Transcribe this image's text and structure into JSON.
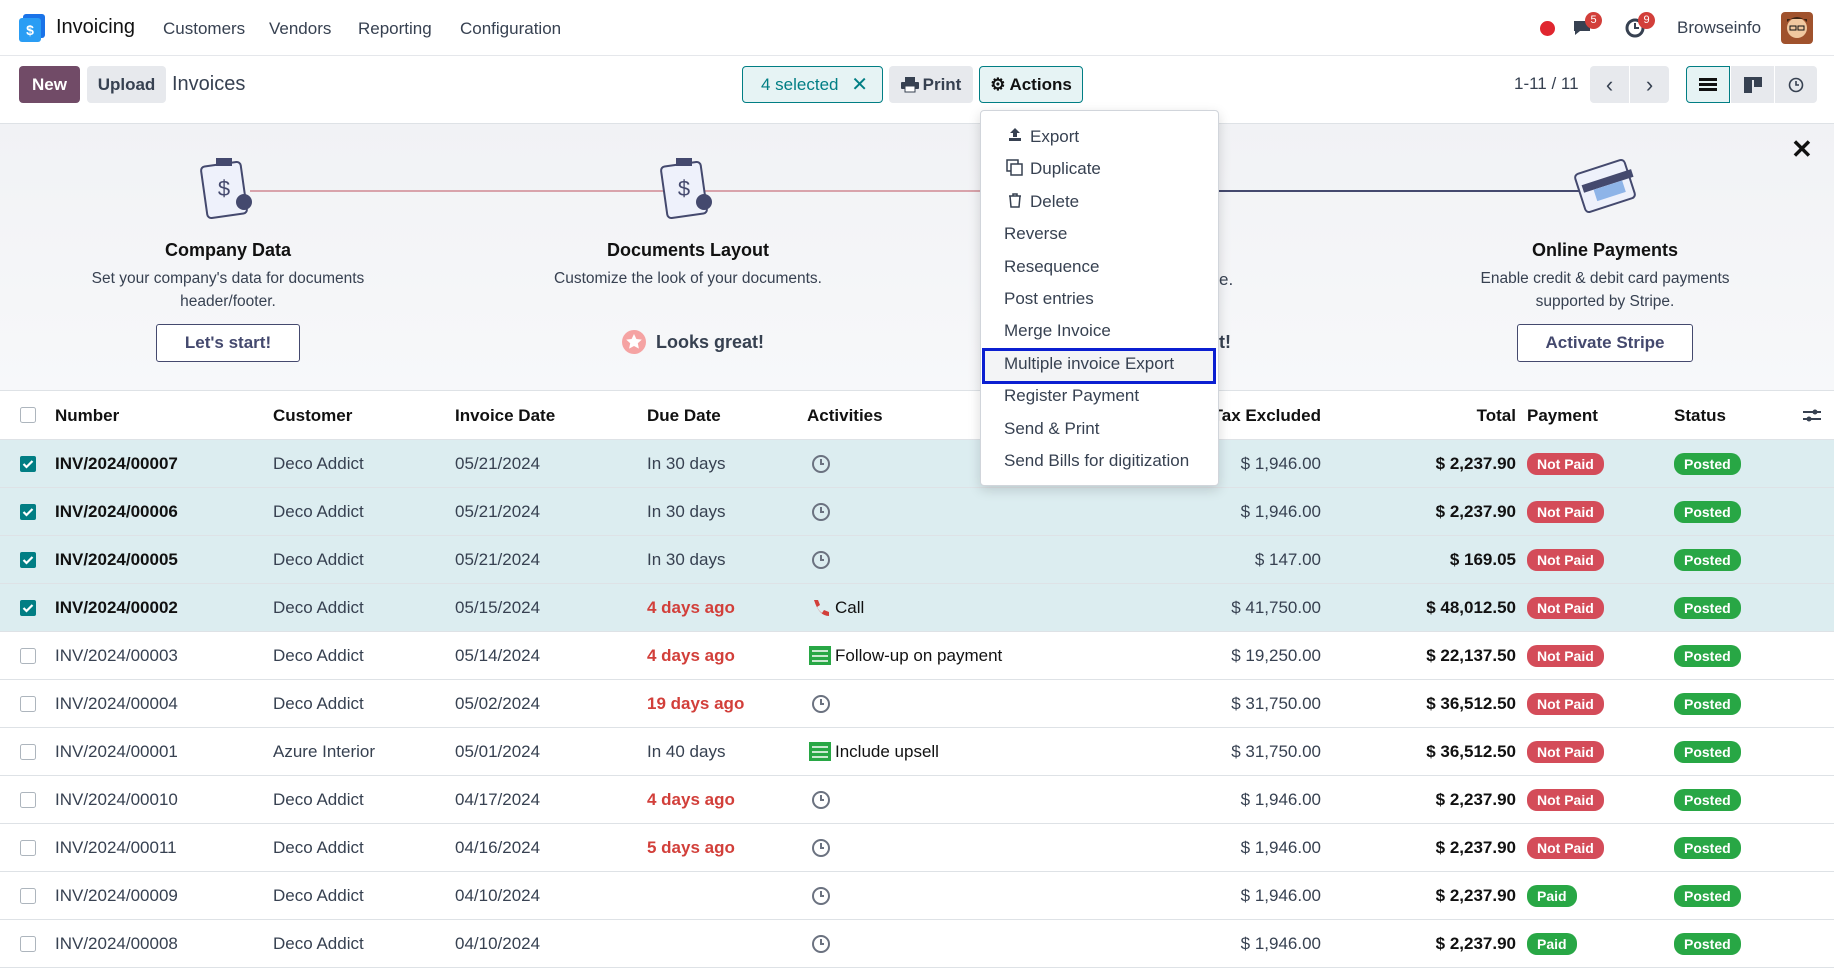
{
  "navbar": {
    "app": "Invoicing",
    "menu": [
      "Customers",
      "Vendors",
      "Reporting",
      "Configuration"
    ],
    "messages_badge": "5",
    "activities_badge": "9",
    "user": "Browseinfo"
  },
  "control": {
    "new": "New",
    "upload": "Upload",
    "breadcrumb": "Invoices",
    "selected": "4 selected",
    "print": "Print",
    "actions": "Actions",
    "pager": "1-11 / 11"
  },
  "actions_menu": {
    "items": [
      "Export",
      "Duplicate",
      "Delete",
      "Reverse",
      "Resequence",
      "Post entries",
      "Merge Invoice",
      "Multiple invoice Export",
      "Register Payment",
      "Send & Print",
      "Send Bills for digitization"
    ],
    "highlighted": 7
  },
  "onboarding": {
    "steps": [
      {
        "title": "Company Data",
        "description": [
          "Set your company's data for documents",
          "header/footer."
        ],
        "button": "Let's start!"
      },
      {
        "title": "Documents Layout",
        "description": [
          "Customize the look of your documents."
        ],
        "done": "Looks great!"
      },
      {
        "description": [
          "e."
        ],
        "done": "t!"
      },
      {
        "title": "Online Payments",
        "description": [
          "Enable credit & debit card payments",
          "supported by Stripe."
        ],
        "button": "Activate Stripe"
      }
    ]
  },
  "table": {
    "columns": [
      "Number",
      "Customer",
      "Invoice Date",
      "Due Date",
      "Activities",
      "Tax Excluded",
      "Total",
      "Payment",
      "Status"
    ],
    "rows": [
      {
        "selected": true,
        "cells": [
          "INV/2024/00007",
          "Deco Addict",
          "05/21/2024",
          "In 30 days",
          null,
          "$ 1,946.00",
          "$ 2,237.90",
          "Not Paid",
          "Posted"
        ],
        "activity_icon": "clock",
        "due_color": "#374151",
        "payment_color": "#d44c59"
      },
      {
        "selected": true,
        "cells": [
          "INV/2024/00006",
          "Deco Addict",
          "05/21/2024",
          "In 30 days",
          null,
          "$ 1,946.00",
          "$ 2,237.90",
          "Not Paid",
          "Posted"
        ],
        "activity_icon": "clock",
        "due_color": "#374151",
        "payment_color": "#d44c59"
      },
      {
        "selected": true,
        "cells": [
          "INV/2024/00005",
          "Deco Addict",
          "05/21/2024",
          "In 30 days",
          null,
          "$ 147.00",
          "$ 169.05",
          "Not Paid",
          "Posted"
        ],
        "activity_icon": "clock",
        "due_color": "#374151",
        "payment_color": "#d44c59"
      },
      {
        "selected": true,
        "cells": [
          "INV/2024/00002",
          "Deco Addict",
          "05/15/2024",
          "4 days ago",
          "Call",
          "$ 41,750.00",
          "$ 48,012.50",
          "Not Paid",
          "Posted"
        ],
        "activity_icon": "call",
        "due_color": "#d23f3a",
        "payment_color": "#d44c59"
      },
      {
        "selected": false,
        "cells": [
          "INV/2024/00003",
          "Deco Addict",
          "05/14/2024",
          "4 days ago",
          "Follow-up on payment",
          "$ 19,250.00",
          "$ 22,137.50",
          "Not Paid",
          "Posted"
        ],
        "activity_icon": "todo",
        "due_color": "#d23f3a",
        "payment_color": "#d44c59"
      },
      {
        "selected": false,
        "cells": [
          "INV/2024/00004",
          "Deco Addict",
          "05/02/2024",
          "19 days ago",
          null,
          "$ 31,750.00",
          "$ 36,512.50",
          "Not Paid",
          "Posted"
        ],
        "activity_icon": "clock",
        "due_color": "#d23f3a",
        "payment_color": "#d44c59"
      },
      {
        "selected": false,
        "cells": [
          "INV/2024/00001",
          "Azure Interior",
          "05/01/2024",
          "In 40 days",
          "Include upsell",
          "$ 31,750.00",
          "$ 36,512.50",
          "Not Paid",
          "Posted"
        ],
        "activity_icon": "todo",
        "due_color": "#374151",
        "payment_color": "#d44c59"
      },
      {
        "selected": false,
        "cells": [
          "INV/2024/00010",
          "Deco Addict",
          "04/17/2024",
          "4 days ago",
          null,
          "$ 1,946.00",
          "$ 2,237.90",
          "Not Paid",
          "Posted"
        ],
        "activity_icon": "clock",
        "due_color": "#d23f3a",
        "payment_color": "#d44c59"
      },
      {
        "selected": false,
        "cells": [
          "INV/2024/00011",
          "Deco Addict",
          "04/16/2024",
          "5 days ago",
          null,
          "$ 1,946.00",
          "$ 2,237.90",
          "Not Paid",
          "Posted"
        ],
        "activity_icon": "clock",
        "due_color": "#d23f3a",
        "payment_color": "#d44c59"
      },
      {
        "selected": false,
        "cells": [
          "INV/2024/00009",
          "Deco Addict",
          "04/10/2024",
          null,
          null,
          "$ 1,946.00",
          "$ 2,237.90",
          "Paid",
          "Posted"
        ],
        "activity_icon": "clock",
        "due_color": "#374151",
        "payment_color": "#28a745"
      },
      {
        "selected": false,
        "cells": [
          "INV/2024/00008",
          "Deco Addict",
          "04/10/2024",
          null,
          null,
          "$ 1,946.00",
          "$ 2,237.90",
          "Paid",
          "Posted"
        ],
        "activity_icon": "clock",
        "due_color": "#374151",
        "payment_color": "#28a745"
      }
    ]
  }
}
